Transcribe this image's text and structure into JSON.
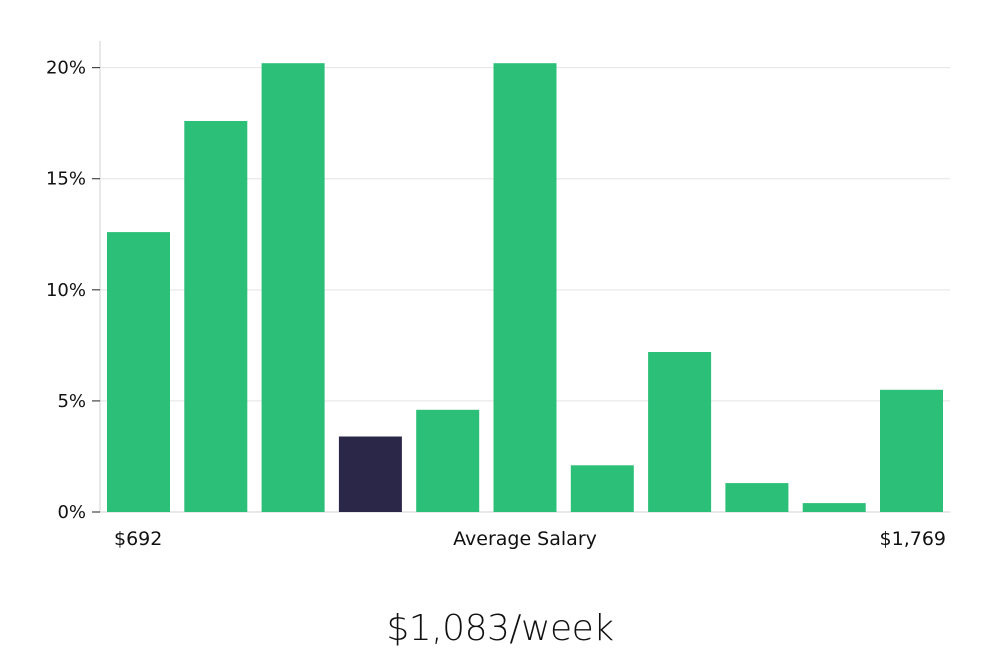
{
  "chart_data": {
    "type": "bar",
    "categories": [
      "1",
      "2",
      "3",
      "4",
      "5",
      "6",
      "7",
      "8",
      "9",
      "10",
      "11"
    ],
    "values": [
      12.6,
      17.6,
      20.2,
      3.4,
      4.6,
      20.2,
      2.1,
      7.2,
      1.3,
      0.4,
      5.5
    ],
    "highlight_index": 3,
    "colors": {
      "bar": "#2bbf78",
      "highlight": "#2a2748",
      "grid": "#e3e3e3",
      "axis": "#d0d0d0"
    },
    "ylim": [
      0,
      21.2
    ],
    "yticks": [
      0,
      5,
      10,
      15,
      20
    ],
    "ytick_labels": [
      "0%",
      "5%",
      "10%",
      "15%",
      "20%"
    ],
    "x_min_label": "$692",
    "xlabel": "Average Salary",
    "x_max_label": "$1,769",
    "grid": true
  },
  "headline": "$1,083/week"
}
